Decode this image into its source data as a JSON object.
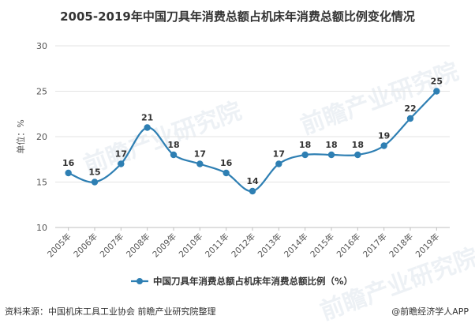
{
  "page": {
    "title": "2005-2019年中国刀具年消费总额占机床年消费总额比例变化情况",
    "source": "资料来源：中国机床工具工业协会 前瞻产业研究院整理",
    "brand": "@前瞻经济学人APP",
    "watermark": "前瞻产业研究院"
  },
  "chart_data": {
    "type": "line",
    "title": "2005-2019年中国刀具年消费总额占机床年消费总额比例变化情况",
    "categories": [
      "2005年",
      "2006年",
      "2007年",
      "2008年",
      "2009年",
      "2010年",
      "2011年",
      "2012年",
      "2013年",
      "2014年",
      "2015年",
      "2016年",
      "2017年",
      "2018年",
      "2019年"
    ],
    "series": [
      {
        "name": "中国刀具年消费总额占机床年消费总额比例（%）",
        "values": [
          16,
          15,
          17,
          21,
          18,
          17,
          16,
          14,
          17,
          18,
          18,
          18,
          19,
          22,
          25
        ]
      }
    ],
    "ylabel": "单位：%",
    "ylim": [
      10,
      30
    ],
    "yticks": [
      10,
      15,
      20,
      25,
      30
    ],
    "grid": true,
    "legend": "bottom",
    "colors": {
      "line": "#2e7fb3",
      "grid": "#e3e3e3",
      "axis": "#bfbfbf"
    }
  }
}
